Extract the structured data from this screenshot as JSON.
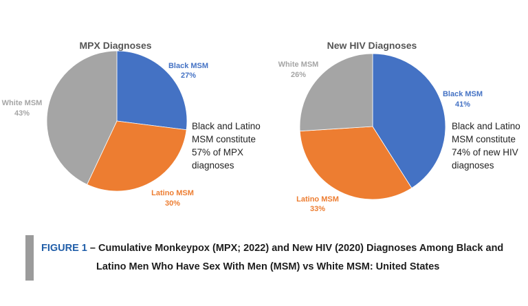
{
  "caption": {
    "figure_label": "FIGURE 1",
    "separator": "–",
    "line1": "Cumulative Monkeypox (MPX; 2022) and New HIV (2020) Diagnoses Among Black and",
    "line2": "Latino Men Who Have Sex With Men (MSM) vs White MSM: United States"
  },
  "colors": {
    "black_msm": "#4472c4",
    "latino_msm": "#ed7d31",
    "white_msm": "#a5a5a5",
    "caption_bar": "#9b9b9b",
    "figure_label": "#1f5da8"
  },
  "chart_data": [
    {
      "type": "pie",
      "title": "MPX Diagnoses",
      "slices": [
        {
          "label": "Black MSM",
          "value": 27,
          "value_label": "27%",
          "color": "#4472c4"
        },
        {
          "label": "Latino  MSM",
          "value": 30,
          "value_label": "30%",
          "color": "#ed7d31"
        },
        {
          "label": "White MSM",
          "value": 43,
          "value_label": "43%",
          "color": "#a5a5a5"
        }
      ],
      "note": [
        "Black and Latino",
        "MSM constitute",
        "57% of MPX",
        "diagnoses"
      ]
    },
    {
      "type": "pie",
      "title": "New HIV Diagnoses",
      "slices": [
        {
          "label": "Black MSM",
          "value": 41,
          "value_label": "41%",
          "color": "#4472c4"
        },
        {
          "label": "Latino  MSM",
          "value": 33,
          "value_label": "33%",
          "color": "#ed7d31"
        },
        {
          "label": "White MSM",
          "value": 26,
          "value_label": "26%",
          "color": "#a5a5a5"
        }
      ],
      "note": [
        "Black and Latino",
        "MSM constitute",
        "74% of new HIV",
        "diagnoses"
      ]
    }
  ]
}
